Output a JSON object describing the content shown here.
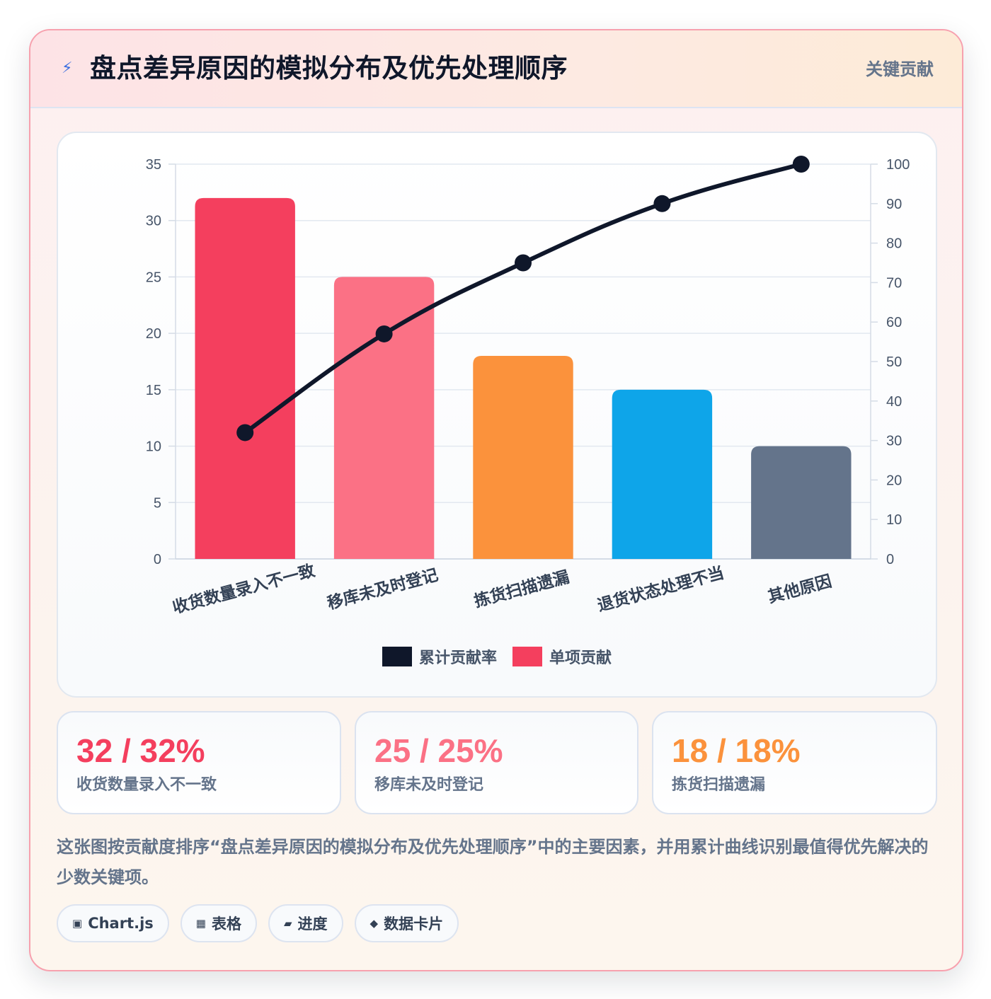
{
  "header": {
    "icon": "⚡",
    "icon_name": "lightning-icon",
    "title": "盘点差异原因的模拟分布及优先处理顺序",
    "badge": "关键贡献"
  },
  "chart_data": {
    "type": "bar",
    "categories": [
      "收货数量录入不一致",
      "移库未及时登记",
      "拣货扫描遗漏",
      "退货状态处理不当",
      "其他原因"
    ],
    "bar_colors": [
      "#f43f5e",
      "#fb7185",
      "#fb923c",
      "#0ea5e9",
      "#64748b"
    ],
    "series": [
      {
        "name": "单项贡献",
        "type": "bar",
        "axis": "left",
        "color": "#f43f5e",
        "values": [
          32,
          25,
          18,
          15,
          10
        ]
      },
      {
        "name": "累计贡献率",
        "type": "line",
        "axis": "right",
        "color": "#0f172a",
        "values": [
          32,
          57,
          75,
          90,
          100
        ]
      }
    ],
    "y_left": {
      "range": [
        0,
        35
      ],
      "ticks": [
        0,
        5,
        10,
        15,
        20,
        25,
        30,
        35
      ]
    },
    "y_right": {
      "range": [
        0,
        100
      ],
      "ticks": [
        0,
        10,
        20,
        30,
        40,
        50,
        60,
        70,
        80,
        90,
        100
      ]
    },
    "legend": {
      "position": "bottom",
      "items": [
        {
          "label": "累计贡献率",
          "color": "#0f172a"
        },
        {
          "label": "单项贡献",
          "color": "#f43f5e"
        }
      ]
    },
    "grid": true
  },
  "stats": [
    {
      "value": "32 / 32%",
      "label": "收货数量录入不一致",
      "color": "#f43f5e"
    },
    {
      "value": "25 / 25%",
      "label": "移库未及时登记",
      "color": "#fb7185"
    },
    {
      "value": "18 / 18%",
      "label": "拣货扫描遗漏",
      "color": "#fb923c"
    }
  ],
  "description": "这张图按贡献度排序“盘点差异原因的模拟分布及优先处理顺序”中的主要因素，并用累计曲线识别最值得优先解决的少数关键项。",
  "pills": [
    {
      "icon": "▣",
      "label": "Chart.js"
    },
    {
      "icon": "▦",
      "label": "表格"
    },
    {
      "icon": "▰",
      "label": "进度"
    },
    {
      "icon": "◆",
      "label": "数据卡片"
    }
  ]
}
